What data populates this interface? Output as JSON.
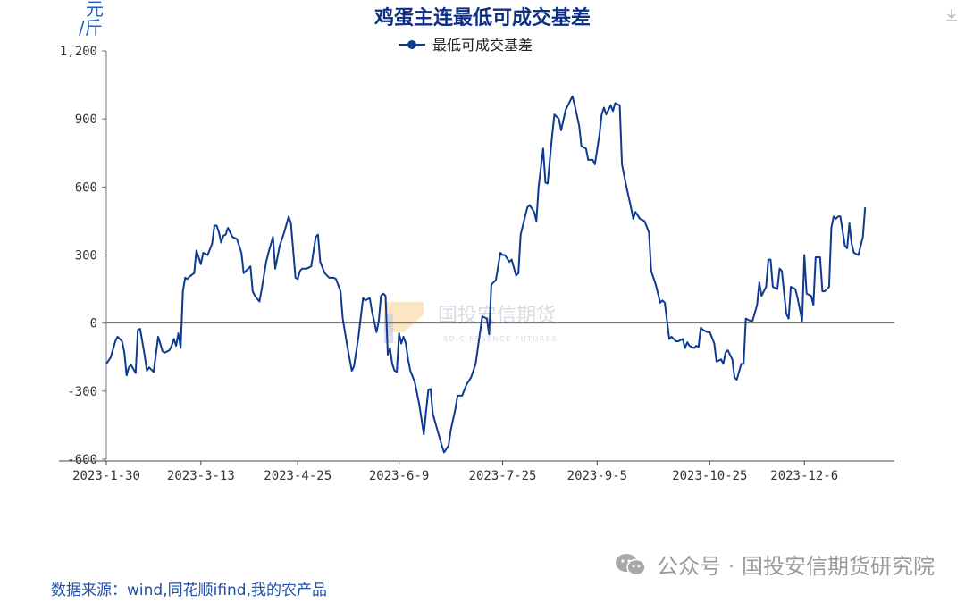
{
  "chart_data": {
    "type": "line",
    "title": "鸡蛋主连最低可成交基差",
    "unit_label": [
      "元",
      "/斤"
    ],
    "legend": [
      {
        "name": "最低可成交基差",
        "color": "#0e3a92"
      }
    ],
    "legend_placement": "top-center",
    "ylim": [
      -600,
      1200
    ],
    "yticks": [
      -600,
      -300,
      0,
      300,
      600,
      900,
      1200
    ],
    "ytick_labels": [
      "-600",
      "-300",
      "0",
      "300",
      "600",
      "900",
      "1,200"
    ],
    "xlim": [
      "2023-01-30",
      "2024-01-15"
    ],
    "xticks": [
      "2023-01-30",
      "2023-03-13",
      "2023-04-25",
      "2023-06-09",
      "2023-07-25",
      "2023-09-05",
      "2023-10-25",
      "2023-12-06"
    ],
    "xtick_labels": [
      "2023-1-30",
      "2023-3-13",
      "2023-4-25",
      "2023-6-9",
      "2023-7-25",
      "2023-9-5",
      "2023-10-25",
      "2023-12-6"
    ],
    "grid": false,
    "series": [
      {
        "name": "最低可成交基差",
        "color": "#0e3a92",
        "points": [
          [
            "2023-01-30",
            -180
          ],
          [
            "2023-02-01",
            -150
          ],
          [
            "2023-02-03",
            -80
          ],
          [
            "2023-02-04",
            -60
          ],
          [
            "2023-02-06",
            -80
          ],
          [
            "2023-02-07",
            -130
          ],
          [
            "2023-02-08",
            -230
          ],
          [
            "2023-02-09",
            -195
          ],
          [
            "2023-02-10",
            -185
          ],
          [
            "2023-02-12",
            -220
          ],
          [
            "2023-02-13",
            -30
          ],
          [
            "2023-02-14",
            -25
          ],
          [
            "2023-02-16",
            -140
          ],
          [
            "2023-02-17",
            -210
          ],
          [
            "2023-02-18",
            -195
          ],
          [
            "2023-02-20",
            -215
          ],
          [
            "2023-02-21",
            -140
          ],
          [
            "2023-02-22",
            -60
          ],
          [
            "2023-02-24",
            -125
          ],
          [
            "2023-02-25",
            -130
          ],
          [
            "2023-02-27",
            -120
          ],
          [
            "2023-02-28",
            -100
          ],
          [
            "2023-03-01",
            -70
          ],
          [
            "2023-03-02",
            -100
          ],
          [
            "2023-03-03",
            -45
          ],
          [
            "2023-03-04",
            -110
          ],
          [
            "2023-03-05",
            140
          ],
          [
            "2023-03-06",
            200
          ],
          [
            "2023-03-07",
            195
          ],
          [
            "2023-03-08",
            205
          ],
          [
            "2023-03-10",
            220
          ],
          [
            "2023-03-11",
            320
          ],
          [
            "2023-03-13",
            260
          ],
          [
            "2023-03-14",
            310
          ],
          [
            "2023-03-16",
            300
          ],
          [
            "2023-03-18",
            350
          ],
          [
            "2023-03-19",
            430
          ],
          [
            "2023-03-20",
            430
          ],
          [
            "2023-03-21",
            400
          ],
          [
            "2023-03-22",
            355
          ],
          [
            "2023-03-23",
            385
          ],
          [
            "2023-03-24",
            390
          ],
          [
            "2023-03-25",
            420
          ],
          [
            "2023-03-27",
            380
          ],
          [
            "2023-03-29",
            370
          ],
          [
            "2023-03-31",
            310
          ],
          [
            "2023-04-01",
            220
          ],
          [
            "2023-04-02",
            230
          ],
          [
            "2023-04-04",
            250
          ],
          [
            "2023-04-05",
            140
          ],
          [
            "2023-04-06",
            120
          ],
          [
            "2023-04-08",
            95
          ],
          [
            "2023-04-09",
            150
          ],
          [
            "2023-04-11",
            270
          ],
          [
            "2023-04-12",
            310
          ],
          [
            "2023-04-14",
            380
          ],
          [
            "2023-04-15",
            240
          ],
          [
            "2023-04-17",
            340
          ],
          [
            "2023-04-19",
            400
          ],
          [
            "2023-04-21",
            470
          ],
          [
            "2023-04-22",
            440
          ],
          [
            "2023-04-24",
            200
          ],
          [
            "2023-04-25",
            195
          ],
          [
            "2023-04-26",
            230
          ],
          [
            "2023-04-27",
            240
          ],
          [
            "2023-04-29",
            240
          ],
          [
            "2023-05-01",
            250
          ],
          [
            "2023-05-03",
            380
          ],
          [
            "2023-05-04",
            390
          ],
          [
            "2023-05-05",
            270
          ],
          [
            "2023-05-07",
            220
          ],
          [
            "2023-05-09",
            200
          ],
          [
            "2023-05-11",
            200
          ],
          [
            "2023-05-12",
            195
          ],
          [
            "2023-05-14",
            140
          ],
          [
            "2023-05-15",
            20
          ],
          [
            "2023-05-17",
            -100
          ],
          [
            "2023-05-19",
            -210
          ],
          [
            "2023-05-20",
            -190
          ],
          [
            "2023-05-22",
            -60
          ],
          [
            "2023-05-24",
            110
          ],
          [
            "2023-05-25",
            100
          ],
          [
            "2023-05-27",
            110
          ],
          [
            "2023-05-28",
            50
          ],
          [
            "2023-05-30",
            -40
          ],
          [
            "2023-05-31",
            10
          ],
          [
            "2023-06-01",
            120
          ],
          [
            "2023-06-02",
            130
          ],
          [
            "2023-06-03",
            120
          ],
          [
            "2023-06-04",
            -140
          ],
          [
            "2023-06-05",
            -110
          ],
          [
            "2023-06-06",
            -180
          ],
          [
            "2023-06-07",
            -210
          ],
          [
            "2023-06-08",
            -215
          ],
          [
            "2023-06-09",
            -45
          ],
          [
            "2023-06-10",
            -90
          ],
          [
            "2023-06-11",
            -60
          ],
          [
            "2023-06-12",
            -90
          ],
          [
            "2023-06-13",
            -160
          ],
          [
            "2023-06-14",
            -210
          ],
          [
            "2023-06-16",
            -260
          ],
          [
            "2023-06-18",
            -360
          ],
          [
            "2023-06-20",
            -490
          ],
          [
            "2023-06-21",
            -390
          ],
          [
            "2023-06-22",
            -295
          ],
          [
            "2023-06-23",
            -290
          ],
          [
            "2023-06-24",
            -400
          ],
          [
            "2023-06-26",
            -470
          ],
          [
            "2023-06-28",
            -540
          ],
          [
            "2023-06-29",
            -570
          ],
          [
            "2023-07-01",
            -540
          ],
          [
            "2023-07-02",
            -470
          ],
          [
            "2023-07-04",
            -380
          ],
          [
            "2023-07-05",
            -320
          ],
          [
            "2023-07-07",
            -320
          ],
          [
            "2023-07-09",
            -270
          ],
          [
            "2023-07-11",
            -240
          ],
          [
            "2023-07-13",
            -180
          ],
          [
            "2023-07-15",
            -40
          ],
          [
            "2023-07-16",
            30
          ],
          [
            "2023-07-18",
            20
          ],
          [
            "2023-07-19",
            -50
          ],
          [
            "2023-07-20",
            170
          ],
          [
            "2023-07-22",
            190
          ],
          [
            "2023-07-24",
            310
          ],
          [
            "2023-07-25",
            300
          ],
          [
            "2023-07-26",
            300
          ],
          [
            "2023-07-28",
            270
          ],
          [
            "2023-07-29",
            280
          ],
          [
            "2023-07-31",
            210
          ],
          [
            "2023-08-01",
            220
          ],
          [
            "2023-08-02",
            390
          ],
          [
            "2023-08-04",
            470
          ],
          [
            "2023-08-05",
            510
          ],
          [
            "2023-08-06",
            520
          ],
          [
            "2023-08-08",
            490
          ],
          [
            "2023-08-09",
            450
          ],
          [
            "2023-08-10",
            600
          ],
          [
            "2023-08-12",
            770
          ],
          [
            "2023-08-13",
            620
          ],
          [
            "2023-08-14",
            615
          ],
          [
            "2023-08-16",
            830
          ],
          [
            "2023-08-17",
            920
          ],
          [
            "2023-08-19",
            900
          ],
          [
            "2023-08-20",
            850
          ],
          [
            "2023-08-22",
            940
          ],
          [
            "2023-08-23",
            960
          ],
          [
            "2023-08-25",
            1000
          ],
          [
            "2023-08-26",
            960
          ],
          [
            "2023-08-28",
            870
          ],
          [
            "2023-08-29",
            780
          ],
          [
            "2023-08-31",
            770
          ],
          [
            "2023-09-01",
            720
          ],
          [
            "2023-09-03",
            720
          ],
          [
            "2023-09-04",
            700
          ],
          [
            "2023-09-06",
            830
          ],
          [
            "2023-09-07",
            920
          ],
          [
            "2023-09-08",
            950
          ],
          [
            "2023-09-09",
            920
          ],
          [
            "2023-09-11",
            960
          ],
          [
            "2023-09-12",
            935
          ],
          [
            "2023-09-13",
            970
          ],
          [
            "2023-09-15",
            960
          ],
          [
            "2023-09-16",
            700
          ],
          [
            "2023-09-18",
            600
          ],
          [
            "2023-09-20",
            510
          ],
          [
            "2023-09-21",
            460
          ],
          [
            "2023-09-22",
            490
          ],
          [
            "2023-09-24",
            460
          ],
          [
            "2023-09-26",
            450
          ],
          [
            "2023-09-28",
            400
          ],
          [
            "2023-09-29",
            230
          ],
          [
            "2023-10-01",
            170
          ],
          [
            "2023-10-03",
            90
          ],
          [
            "2023-10-04",
            100
          ],
          [
            "2023-10-05",
            90
          ],
          [
            "2023-10-07",
            -70
          ],
          [
            "2023-10-08",
            -60
          ],
          [
            "2023-10-10",
            -80
          ],
          [
            "2023-10-11",
            -80
          ],
          [
            "2023-10-13",
            -70
          ],
          [
            "2023-10-14",
            -110
          ],
          [
            "2023-10-15",
            -85
          ],
          [
            "2023-10-16",
            -100
          ],
          [
            "2023-10-18",
            -110
          ],
          [
            "2023-10-19",
            -100
          ],
          [
            "2023-10-20",
            -105
          ],
          [
            "2023-10-21",
            -20
          ],
          [
            "2023-10-22",
            -30
          ],
          [
            "2023-10-24",
            -40
          ],
          [
            "2023-10-25",
            -40
          ],
          [
            "2023-10-27",
            -90
          ],
          [
            "2023-10-28",
            -170
          ],
          [
            "2023-10-30",
            -160
          ],
          [
            "2023-10-31",
            -180
          ],
          [
            "2023-11-01",
            -130
          ],
          [
            "2023-11-02",
            -120
          ],
          [
            "2023-11-04",
            -160
          ],
          [
            "2023-11-05",
            -240
          ],
          [
            "2023-11-06",
            -250
          ],
          [
            "2023-11-08",
            -180
          ],
          [
            "2023-11-09",
            -180
          ],
          [
            "2023-11-10",
            20
          ],
          [
            "2023-11-12",
            10
          ],
          [
            "2023-11-13",
            10
          ],
          [
            "2023-11-15",
            80
          ],
          [
            "2023-11-16",
            180
          ],
          [
            "2023-11-17",
            120
          ],
          [
            "2023-11-19",
            160
          ],
          [
            "2023-11-20",
            280
          ],
          [
            "2023-11-21",
            280
          ],
          [
            "2023-11-22",
            160
          ],
          [
            "2023-11-24",
            150
          ],
          [
            "2023-11-25",
            240
          ],
          [
            "2023-11-26",
            230
          ],
          [
            "2023-11-28",
            40
          ],
          [
            "2023-11-29",
            20
          ],
          [
            "2023-11-30",
            160
          ],
          [
            "2023-12-02",
            150
          ],
          [
            "2023-12-03",
            110
          ],
          [
            "2023-12-05",
            10
          ],
          [
            "2023-12-06",
            300
          ],
          [
            "2023-12-07",
            130
          ],
          [
            "2023-12-09",
            120
          ],
          [
            "2023-12-10",
            80
          ],
          [
            "2023-12-11",
            290
          ],
          [
            "2023-12-13",
            290
          ],
          [
            "2023-12-14",
            140
          ],
          [
            "2023-12-15",
            140
          ],
          [
            "2023-12-17",
            160
          ],
          [
            "2023-12-18",
            420
          ],
          [
            "2023-12-19",
            470
          ],
          [
            "2023-12-20",
            460
          ],
          [
            "2023-12-21",
            470
          ],
          [
            "2023-12-22",
            470
          ],
          [
            "2023-12-24",
            340
          ],
          [
            "2023-12-25",
            330
          ],
          [
            "2023-12-26",
            440
          ],
          [
            "2023-12-27",
            350
          ],
          [
            "2023-12-28",
            310
          ],
          [
            "2023-12-30",
            300
          ],
          [
            "2024-01-01",
            380
          ],
          [
            "2024-01-02",
            510
          ]
        ]
      }
    ]
  },
  "watermark": {
    "cn": "国投安信期货",
    "en": "SDIC ESSENCE FUTURES"
  },
  "source_text": "数据来源：wind,同花顺ifind,我的农产品",
  "wechat_text": "公众号 · 国投安信期货研究院",
  "icons": {
    "download": "download-icon",
    "wechat": "wechat-icon"
  }
}
